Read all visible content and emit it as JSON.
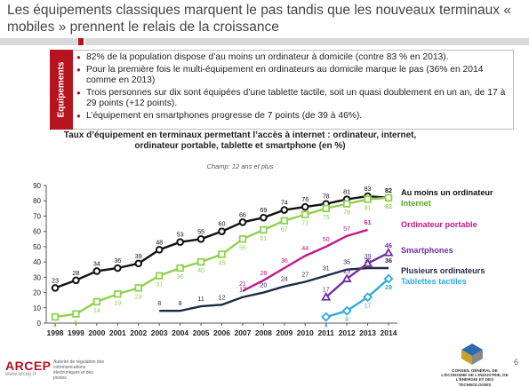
{
  "slide": {
    "title": "Les équipements classiques marquent le pas tandis que les nouveaux terminaux « mobiles » prennent le relais de la croissance",
    "side_label": "Equipements",
    "bullets": [
      "82% de la population dispose d’au moins un ordinateur à domicile (contre 83 % en 2013).",
      "Pour la première fois le multi-équipement en ordinateurs au domicile marque le pas (36% en 2014 comme en 2013)",
      "Trois personnes sur dix sont équipées d’une tablette tactile, soit un quasi doublement en un an, de 17 à 29 points (+12 points).",
      "L’équipement en smartphones progresse de 7 points (de 39 à 46%)."
    ],
    "footer": {
      "arcep": "ARCEP",
      "arcep_url": "www.arcep.fr",
      "arcep_text": "Autorité de régulation des communications électroniques et des postes",
      "cge_text": "CONSEIL GÉNÉRAL DE L’ÉCONOMIE DE L’INDUSTRIE, DE L’ÉNERGIE ET DES TECHNOLOGIES",
      "page_number": "6"
    },
    "colors": {
      "red": "#b5131e",
      "grey_bar": "#d9d9d9"
    }
  },
  "chart_data": {
    "type": "line",
    "title": "Taux d’équipement en terminaux permettant l’accès à internet : ordinateur, internet, ordinateur portable, tablette et smartphone (en %)",
    "subtitle": "Champ: 12 ans et plus",
    "xlabel": "",
    "ylabel": "",
    "ylim": [
      0,
      90
    ],
    "yticks": [
      0,
      10,
      20,
      30,
      40,
      50,
      60,
      70,
      80,
      90
    ],
    "x": [
      1998,
      1999,
      2000,
      2001,
      2002,
      2003,
      2004,
      2005,
      2006,
      2007,
      2008,
      2009,
      2010,
      2011,
      2012,
      2013,
      2014
    ],
    "grid": false,
    "legend": "labels at right end of lines",
    "series": [
      {
        "name": "Au moins un ordinateur",
        "color": "#111111",
        "marker": "circle",
        "fill": "#ffffff",
        "dashed": false,
        "label_color": "#111111",
        "values": [
          23,
          28,
          34,
          36,
          39,
          48,
          53,
          55,
          60,
          66,
          69,
          74,
          76,
          78,
          81,
          83,
          82
        ]
      },
      {
        "name": "Internet",
        "color": "#8fd14f",
        "marker": "square",
        "fill": "#ffffff",
        "dashed": false,
        "label_color": "#5aa82a",
        "values": [
          4,
          6,
          14,
          19,
          23,
          31,
          36,
          40,
          45,
          55,
          61,
          67,
          71,
          75,
          78,
          81,
          82
        ]
      },
      {
        "name": "Ordinateur portable",
        "color": "#c0198e",
        "marker": "none",
        "fill": "none",
        "dashed": false,
        "label_color": "#c0198e",
        "x": [
          2007,
          2008,
          2009,
          2010,
          2011,
          2012,
          2013
        ],
        "values": [
          21,
          28,
          36,
          44,
          50,
          57,
          61
        ]
      },
      {
        "name": "Plusieurs ordinateurs",
        "color": "#1f2a44",
        "marker": "none",
        "fill": "none",
        "dashed": false,
        "label_color": "#1f2a44",
        "x": [
          2003,
          2004,
          2005,
          2006,
          2007,
          2008,
          2009,
          2010,
          2011,
          2012,
          2013,
          2014
        ],
        "values": [
          8,
          8,
          11,
          12,
          17,
          20,
          24,
          27,
          31,
          35,
          36,
          36
        ]
      },
      {
        "name": "Smartphones",
        "color": "#7030a0",
        "marker": "triangle",
        "fill": "#ffffff",
        "dashed": false,
        "label_color": "#7030a0",
        "x": [
          2011,
          2012,
          2013,
          2014
        ],
        "values": [
          17,
          29,
          39,
          46
        ]
      },
      {
        "name": "Tablettes tactiles",
        "color": "#2fa8e0",
        "marker": "diamond",
        "fill": "#ffffff",
        "dashed": false,
        "label_color": "#2fa8e0",
        "x": [
          2011,
          2012,
          2013,
          2014
        ],
        "values": [
          4,
          8,
          17,
          29
        ]
      }
    ]
  }
}
